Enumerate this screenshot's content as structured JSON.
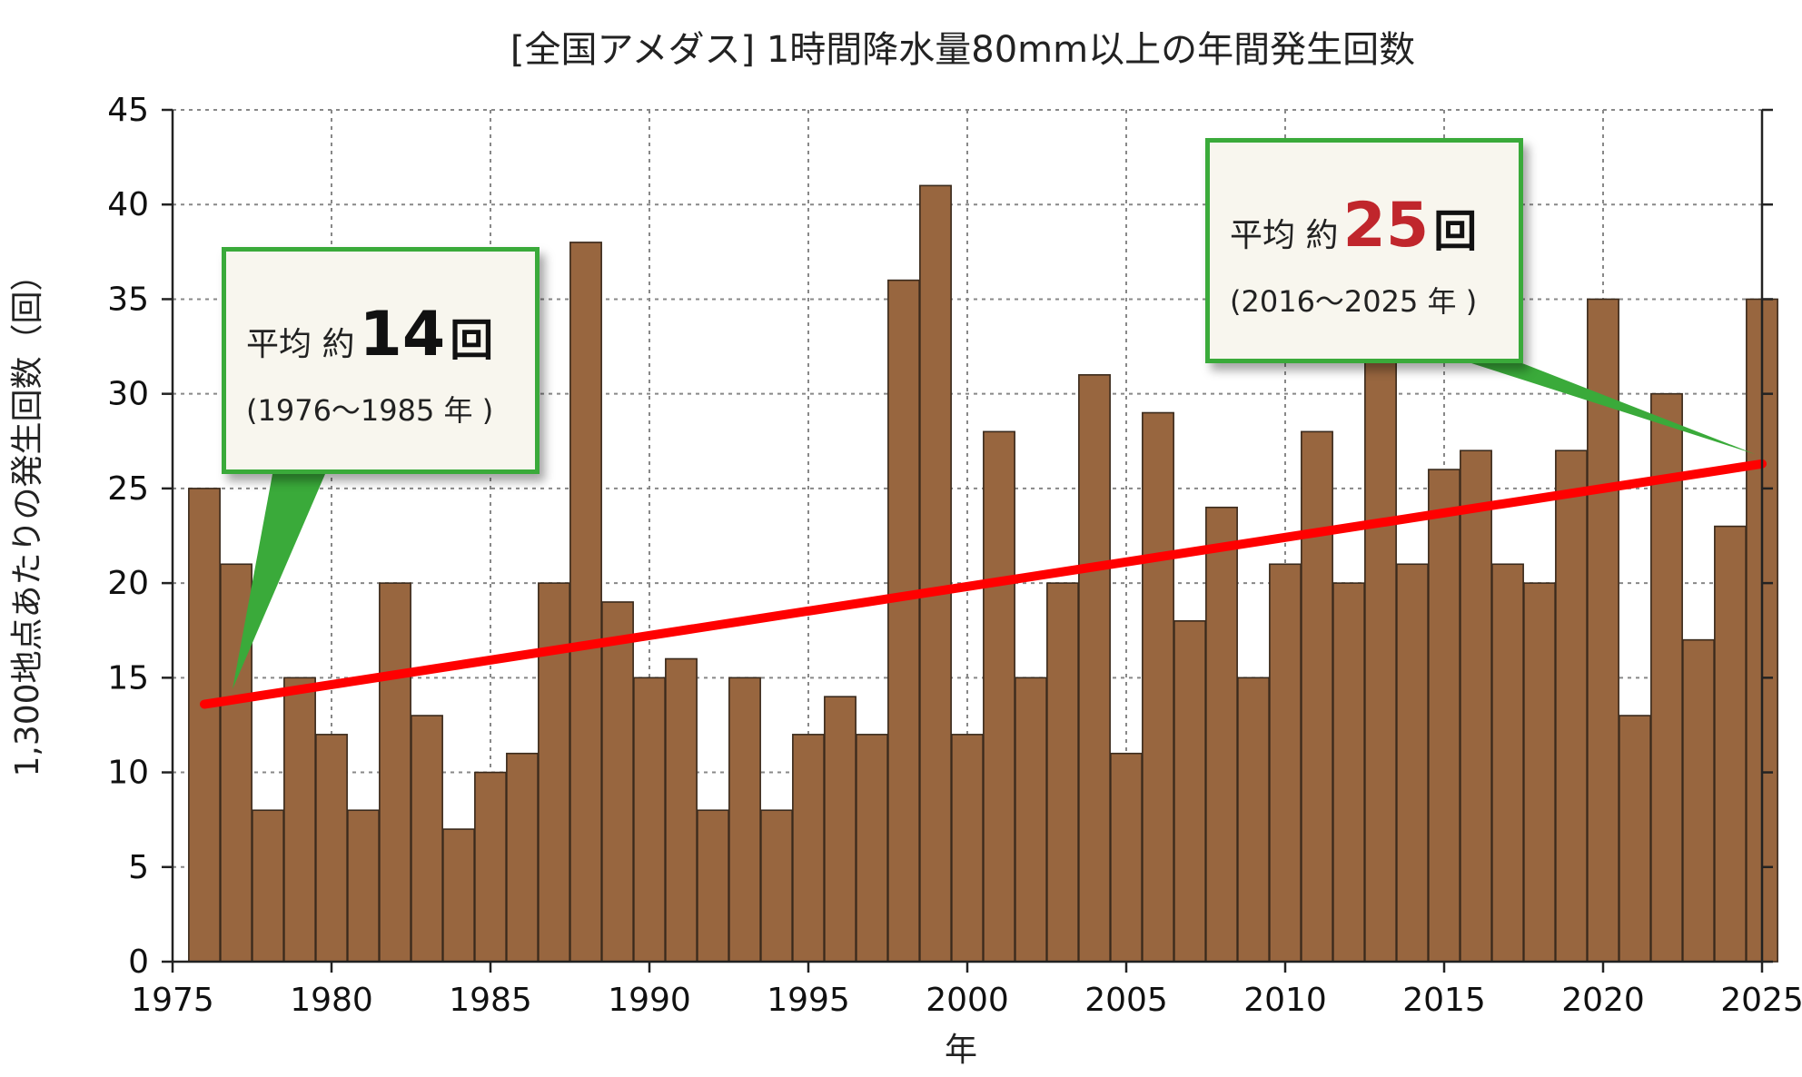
{
  "chart_data": {
    "type": "bar",
    "title": "[全国アメダス] 1時間降水量80mm以上の年間発生回数",
    "xlabel": "年",
    "ylabel": "1,300地点あたりの発生回数（回）",
    "ylim": [
      0,
      45
    ],
    "xlim": [
      1975,
      2025
    ],
    "yticks": [
      0,
      5,
      10,
      15,
      20,
      25,
      30,
      35,
      40,
      45
    ],
    "xticks": [
      1975,
      1980,
      1985,
      1990,
      1995,
      2000,
      2005,
      2010,
      2015,
      2020,
      2025
    ],
    "grid": true,
    "bar_color": "#98663f",
    "trend_color": "#ff0000",
    "years": [
      1976,
      1977,
      1978,
      1979,
      1980,
      1981,
      1982,
      1983,
      1984,
      1985,
      1986,
      1987,
      1988,
      1989,
      1990,
      1991,
      1992,
      1993,
      1994,
      1995,
      1996,
      1997,
      1998,
      1999,
      2000,
      2001,
      2002,
      2003,
      2004,
      2005,
      2006,
      2007,
      2008,
      2009,
      2010,
      2011,
      2012,
      2013,
      2014,
      2015,
      2016,
      2017,
      2018,
      2019,
      2020,
      2021,
      2022,
      2023,
      2024,
      2025
    ],
    "values": [
      25,
      21,
      8,
      15,
      12,
      8,
      20,
      13,
      7,
      10,
      11,
      20,
      38,
      19,
      15,
      16,
      8,
      15,
      8,
      12,
      14,
      12,
      36,
      41,
      12,
      28,
      15,
      20,
      31,
      11,
      29,
      18,
      24,
      15,
      21,
      28,
      20,
      32,
      21,
      26,
      27,
      21,
      20,
      27,
      35,
      13,
      30,
      17,
      23,
      35
    ],
    "trend": {
      "x": [
        1976,
        2025
      ],
      "y": [
        13.6,
        26.3
      ]
    }
  },
  "callouts": {
    "early": {
      "prefix": "平均 約",
      "number": "14",
      "unit": "回",
      "period": "(1976〜1985 年 )",
      "border_color": "#3aaa3a"
    },
    "late": {
      "prefix": "平均 約",
      "number": "25",
      "unit": "回",
      "period": "(2016〜2025 年 )",
      "number_color": "#c0262c",
      "border_color": "#3aaa3a"
    }
  }
}
